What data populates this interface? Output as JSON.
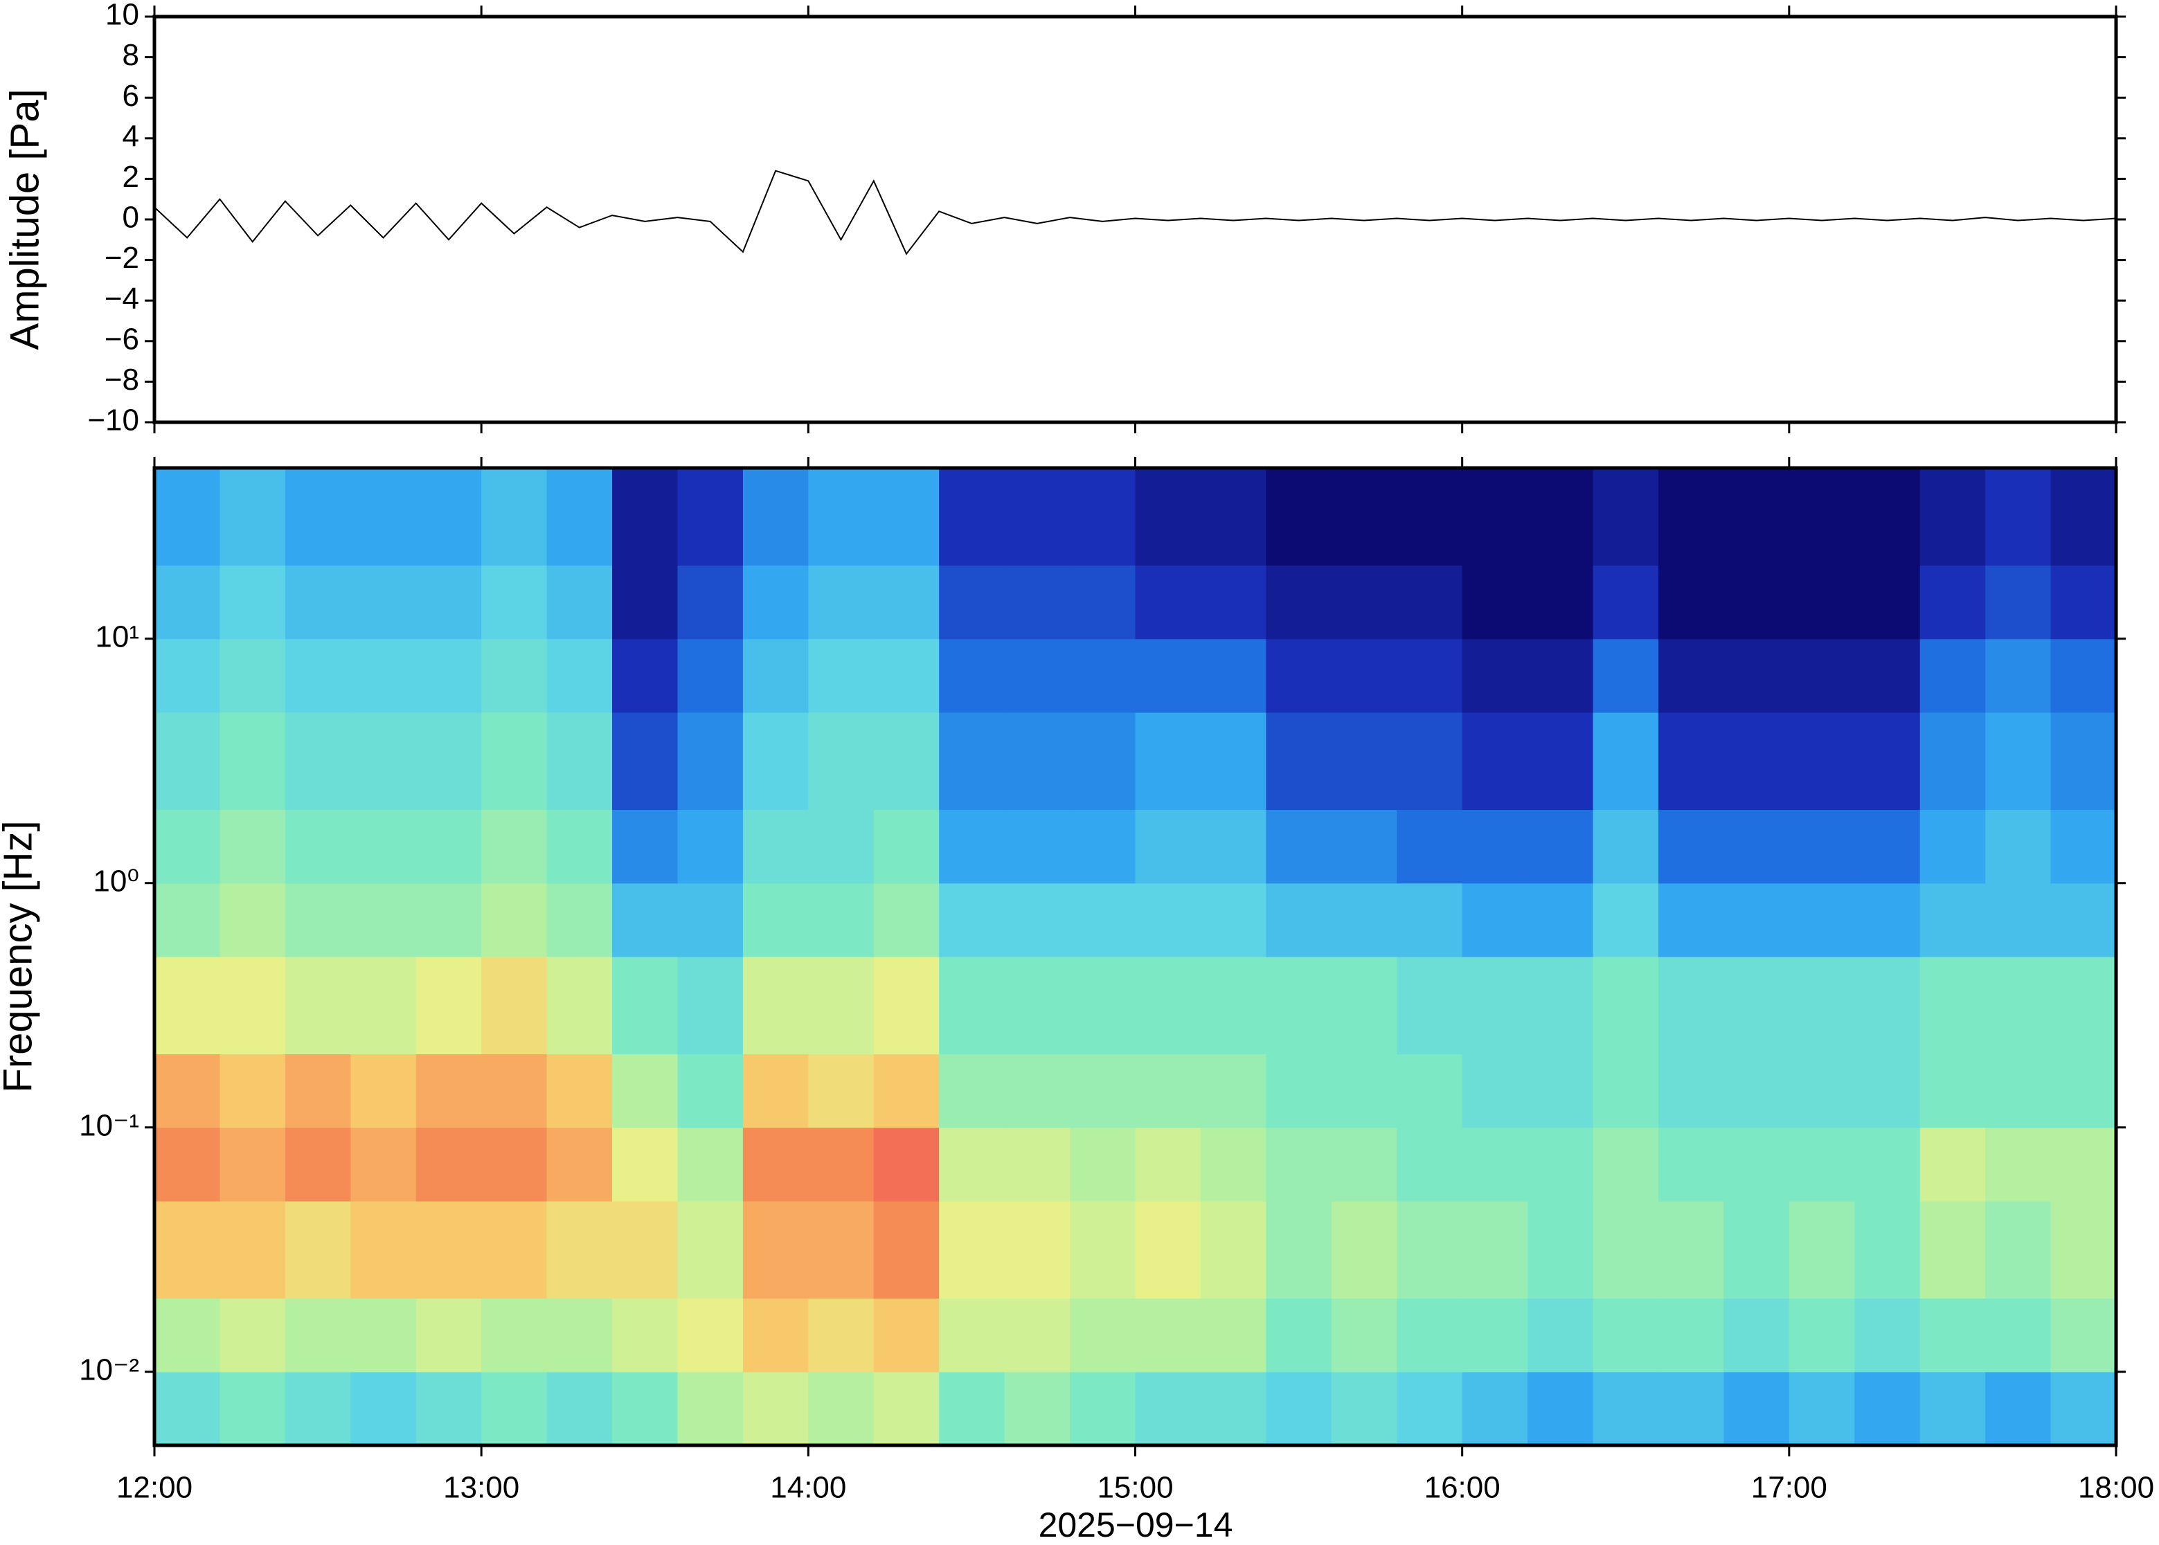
{
  "chart_data": [
    {
      "type": "line",
      "ylabel": "Amplitude [Pa]",
      "color": "#000000",
      "x": [
        12.0,
        12.1,
        12.2,
        12.3,
        12.4,
        12.5,
        12.6,
        12.7,
        12.8,
        12.9,
        13.0,
        13.1,
        13.2,
        13.3,
        13.4,
        13.5,
        13.6,
        13.7,
        13.8,
        13.9,
        14.0,
        14.1,
        14.2,
        14.3,
        14.4,
        14.5,
        14.6,
        14.7,
        14.8,
        14.9,
        15.0,
        15.1,
        15.2,
        15.3,
        15.4,
        15.5,
        15.6,
        15.7,
        15.8,
        15.9,
        16.0,
        16.1,
        16.2,
        16.3,
        16.4,
        16.5,
        16.6,
        16.7,
        16.8,
        16.9,
        17.0,
        17.1,
        17.2,
        17.3,
        17.4,
        17.5,
        17.6,
        17.7,
        17.8,
        17.9,
        18.0
      ],
      "values": [
        0.6,
        -0.9,
        1.0,
        -1.1,
        0.9,
        -0.8,
        0.7,
        -0.9,
        0.8,
        -1.0,
        0.8,
        -0.7,
        0.6,
        -0.4,
        0.2,
        -0.1,
        0.1,
        -0.1,
        -1.6,
        2.4,
        1.9,
        -1.0,
        1.9,
        -1.7,
        0.4,
        -0.2,
        0.1,
        -0.2,
        0.1,
        -0.1,
        0.05,
        -0.05,
        0.05,
        -0.05,
        0.05,
        -0.05,
        0.05,
        -0.05,
        0.05,
        -0.05,
        0.05,
        -0.05,
        0.05,
        -0.05,
        0.05,
        -0.05,
        0.05,
        -0.05,
        0.05,
        -0.05,
        0.05,
        -0.05,
        0.05,
        -0.05,
        0.05,
        -0.05,
        0.1,
        -0.05,
        0.05,
        -0.05,
        0.05
      ],
      "xlim": [
        12,
        18
      ],
      "ylim": [
        -10,
        10
      ],
      "yticks": [
        {
          "value": -10,
          "label": "−10"
        },
        {
          "value": -8,
          "label": "−8"
        },
        {
          "value": -6,
          "label": "−6"
        },
        {
          "value": -4,
          "label": "−4"
        },
        {
          "value": -2,
          "label": "−2"
        },
        0,
        2,
        4,
        6,
        8,
        10
      ]
    },
    {
      "type": "heatmap",
      "ylabel": "Frequency [Hz]",
      "xlabel": "2025−09−14",
      "x_edges": [
        12.0,
        12.2,
        12.4,
        12.6,
        12.8,
        13.0,
        13.2,
        13.4,
        13.6,
        13.8,
        14.0,
        14.2,
        14.4,
        14.6,
        14.8,
        15.0,
        15.2,
        15.4,
        15.6,
        15.8,
        16.0,
        16.2,
        16.4,
        16.6,
        16.8,
        17.0,
        17.2,
        17.4,
        17.6,
        17.8,
        18.0
      ],
      "y_edges": [
        0.005,
        0.01,
        0.02,
        0.05,
        0.1,
        0.2,
        0.5,
        1,
        2,
        5,
        10,
        20,
        50
      ],
      "values": [
        [
          4.5,
          5,
          4.5,
          4,
          4.5,
          5,
          4.5,
          5,
          6,
          6.5,
          6,
          6.5,
          5,
          5.5,
          5,
          4.5,
          4.5,
          4,
          4.5,
          4,
          3.5,
          3,
          3.5,
          3.5,
          3,
          3.5,
          3,
          3.5,
          3,
          3.5
        ],
        [
          6,
          6.5,
          6,
          6,
          6.5,
          6,
          6,
          6.5,
          7,
          8,
          7.5,
          8,
          6.5,
          6.5,
          6,
          6,
          6,
          5,
          5.5,
          5,
          5,
          4.5,
          5,
          5,
          4.5,
          5,
          4.5,
          5,
          5,
          5.5
        ],
        [
          8,
          8,
          7.5,
          8,
          8,
          8,
          7.5,
          7.5,
          6.5,
          8.5,
          8.5,
          9,
          7,
          7,
          6.5,
          7,
          6.5,
          5.5,
          6,
          5.5,
          5.5,
          5,
          5.5,
          5.5,
          5,
          5.5,
          5,
          6,
          5.5,
          6
        ],
        [
          9,
          8.5,
          9,
          8.5,
          9,
          9,
          8.5,
          7,
          6,
          9,
          9,
          9.5,
          6.5,
          6.5,
          6,
          6.5,
          6,
          5.5,
          5.5,
          5,
          5,
          5,
          5.5,
          5,
          5,
          5,
          5,
          6.5,
          6,
          6
        ],
        [
          8.5,
          8,
          8.5,
          8,
          8.5,
          8.5,
          8,
          6,
          5,
          8,
          7.5,
          8,
          5.5,
          5.5,
          5.5,
          5.5,
          5.5,
          5,
          5,
          5,
          4.5,
          4.5,
          5,
          4.5,
          4.5,
          4.5,
          4.5,
          5,
          5,
          5
        ],
        [
          7,
          7,
          6.5,
          6.5,
          7,
          7.5,
          6.5,
          5,
          4.5,
          6.5,
          6.5,
          7,
          5,
          5,
          5,
          5,
          5,
          5,
          5,
          4.5,
          4.5,
          4.5,
          5,
          4.5,
          4.5,
          4.5,
          4.5,
          5,
          5,
          5
        ],
        [
          5.5,
          6,
          5.5,
          5.5,
          5.5,
          6,
          5.5,
          3.5,
          3.5,
          5,
          5,
          5.5,
          4,
          4,
          4,
          4,
          4,
          3.5,
          3.5,
          3.5,
          3,
          3,
          4,
          3,
          3,
          3,
          3,
          3.5,
          3.5,
          3.5
        ],
        [
          5,
          5.5,
          5,
          5,
          5,
          5.5,
          5,
          2.5,
          3,
          4.5,
          4.5,
          5,
          3,
          3,
          3,
          3.5,
          3.5,
          2.5,
          2.5,
          2,
          2,
          2,
          3.5,
          2,
          2,
          2,
          2,
          3,
          3.5,
          3
        ],
        [
          4.5,
          5,
          4.5,
          4.5,
          4.5,
          5,
          4.5,
          1.5,
          2.5,
          4,
          4.5,
          4.5,
          2.5,
          2.5,
          2.5,
          3,
          3,
          1.5,
          1.5,
          1.5,
          1,
          1,
          3,
          1,
          1,
          1,
          1,
          2.5,
          3,
          2.5
        ],
        [
          4,
          4.5,
          4,
          4,
          4,
          4.5,
          4,
          1,
          2,
          3.5,
          4,
          4,
          2,
          2,
          2,
          2,
          2,
          1,
          1,
          1,
          0.5,
          0.5,
          2,
          0.5,
          0.5,
          0.5,
          0.5,
          2,
          2.5,
          2
        ],
        [
          3.5,
          4,
          3.5,
          3.5,
          3.5,
          4,
          3.5,
          0.5,
          1.5,
          3,
          3.5,
          3.5,
          1.5,
          1.5,
          1.5,
          1,
          1,
          0.5,
          0.5,
          0.5,
          0,
          0,
          1,
          0,
          0,
          0,
          0,
          1,
          1.5,
          1
        ],
        [
          3,
          3.5,
          3,
          3,
          3,
          3.5,
          3,
          0.5,
          1,
          2.5,
          3,
          3,
          1,
          1,
          1,
          0.5,
          0.5,
          0,
          0,
          0,
          0,
          0,
          0.5,
          0,
          0,
          0,
          0,
          0.5,
          1,
          0.5
        ]
      ],
      "colormap": [
        "#0b0b73",
        "#1a2fb8",
        "#1f6fe0",
        "#33a7f0",
        "#5dd4e6",
        "#7de8c4",
        "#b5f0a0",
        "#e8f08a",
        "#f8c96a",
        "#f58b55",
        "#ef5555"
      ],
      "clim": [
        0,
        10
      ],
      "xlim": [
        12,
        18
      ],
      "ylim": [
        0.005,
        50
      ],
      "yscale": "log",
      "xticks": [
        {
          "value": 12,
          "label": "12:00"
        },
        {
          "value": 13,
          "label": "13:00"
        },
        {
          "value": 14,
          "label": "14:00"
        },
        {
          "value": 15,
          "label": "15:00"
        },
        {
          "value": 16,
          "label": "16:00"
        },
        {
          "value": 17,
          "label": "17:00"
        },
        {
          "value": 18,
          "label": "18:00"
        }
      ],
      "yticks": [
        {
          "value": 0.01,
          "label": "10⁻²"
        },
        {
          "value": 0.1,
          "label": "10⁻¹"
        },
        {
          "value": 1,
          "label": "10⁰"
        },
        {
          "value": 10,
          "label": "10¹"
        }
      ]
    }
  ]
}
